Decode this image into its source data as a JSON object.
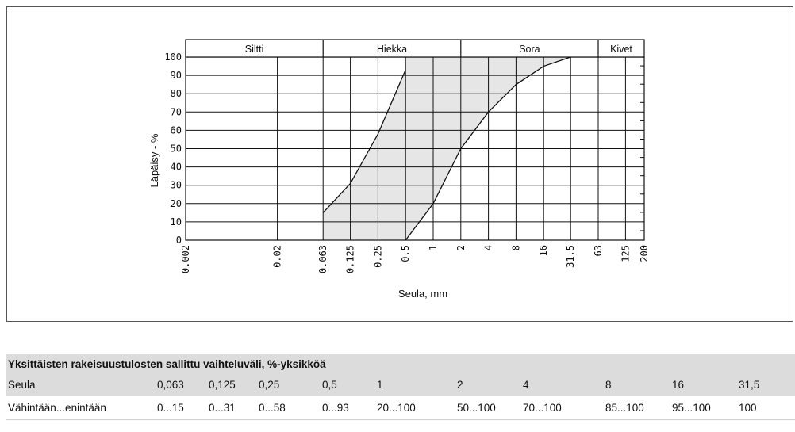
{
  "chart_data": {
    "type": "area",
    "xlabel": "Seula, mm",
    "ylabel": "Läpäisy - %",
    "xscale": "log",
    "xlim": [
      0.002,
      200
    ],
    "ylim": [
      0,
      100
    ],
    "x_ticks": [
      "0.002",
      "0.02",
      "0.063",
      "0.125",
      "0.25",
      "0.5",
      "1",
      "2",
      "4",
      "8",
      "16",
      "31,5",
      "63",
      "125",
      "200"
    ],
    "y_ticks": [
      "100",
      "90",
      "80",
      "70",
      "60",
      "50",
      "40",
      "30",
      "20",
      "10",
      "0"
    ],
    "grid": true,
    "fill_color": "#e6e6e6",
    "bands": [
      {
        "label": "Siltti",
        "from": 0.002,
        "to": 0.063
      },
      {
        "label": "Hiekka",
        "from": 0.063,
        "to": 2
      },
      {
        "label": "Sora",
        "from": 2,
        "to": 63
      },
      {
        "label": "Kivet",
        "from": 63,
        "to": 200
      }
    ],
    "series": [
      {
        "x": [
          0.063,
          0.125,
          0.25,
          0.5
        ],
        "y": [
          15,
          31,
          58,
          93
        ]
      },
      {
        "x": [
          0.5,
          1,
          2,
          4,
          8,
          16,
          31.5
        ],
        "y": [
          0,
          20,
          50,
          70,
          85,
          95,
          100
        ]
      }
    ]
  },
  "table": {
    "title": "Yksittäisten rakeisuustulosten sallittu vaihteluväli, %-yksikköä",
    "rows": [
      [
        "Seula",
        "0,063",
        "0,125",
        "0,25",
        "0,5",
        "1",
        "2",
        "4",
        "8",
        "16",
        "31,5"
      ],
      [
        "Vähintään...enintään",
        "0...15",
        "0...31",
        "0...58",
        "0...93",
        "20...100",
        "50...100",
        "70...100",
        "85...100",
        "95...100",
        "100"
      ]
    ]
  }
}
